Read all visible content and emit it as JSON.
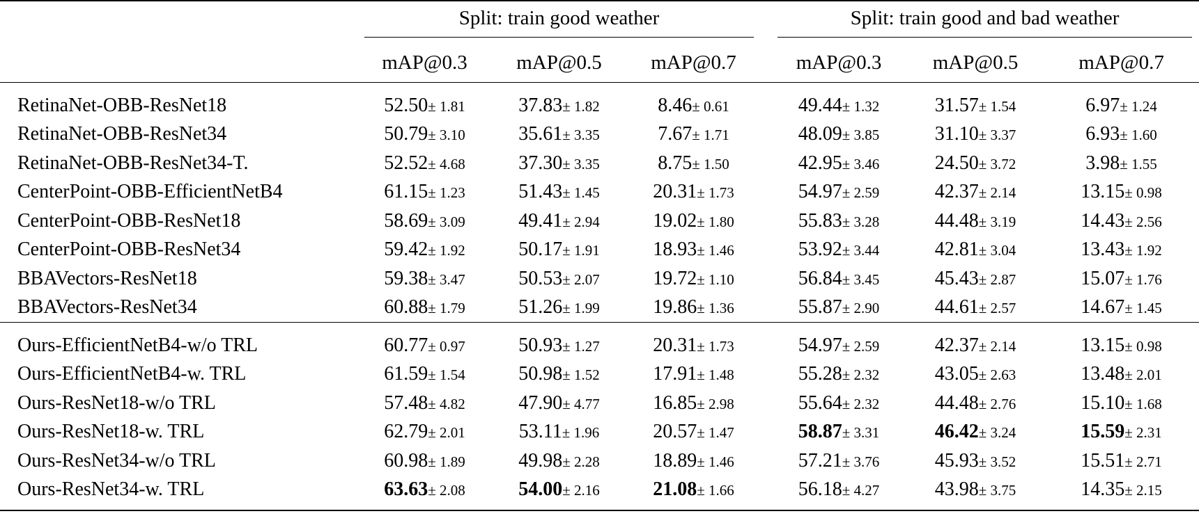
{
  "table": {
    "groups": [
      "Split: train good weather",
      "Split: train good and bad weather"
    ],
    "metrics": [
      "mAP@0.3",
      "mAP@0.5",
      "mAP@0.7"
    ],
    "sections": [
      {
        "rows": [
          {
            "model": "RetinaNet-OBB-ResNet18",
            "cells": [
              {
                "v": "52.50",
                "s": "± 1.81",
                "b": false
              },
              {
                "v": "37.83",
                "s": "± 1.82",
                "b": false
              },
              {
                "v": "8.46",
                "s": "± 0.61",
                "b": false
              },
              {
                "v": "49.44",
                "s": "± 1.32",
                "b": false
              },
              {
                "v": "31.57",
                "s": "± 1.54",
                "b": false
              },
              {
                "v": "6.97",
                "s": "± 1.24",
                "b": false
              }
            ]
          },
          {
            "model": "RetinaNet-OBB-ResNet34",
            "cells": [
              {
                "v": "50.79",
                "s": "± 3.10",
                "b": false
              },
              {
                "v": "35.61",
                "s": "± 3.35",
                "b": false
              },
              {
                "v": "7.67",
                "s": "± 1.71",
                "b": false
              },
              {
                "v": "48.09",
                "s": "± 3.85",
                "b": false
              },
              {
                "v": "31.10",
                "s": "± 3.37",
                "b": false
              },
              {
                "v": "6.93",
                "s": "± 1.60",
                "b": false
              }
            ]
          },
          {
            "model": "RetinaNet-OBB-ResNet34-T.",
            "cells": [
              {
                "v": "52.52",
                "s": "± 4.68",
                "b": false
              },
              {
                "v": "37.30",
                "s": "± 3.35",
                "b": false
              },
              {
                "v": "8.75",
                "s": "± 1.50",
                "b": false
              },
              {
                "v": "42.95",
                "s": "± 3.46",
                "b": false
              },
              {
                "v": "24.50",
                "s": "± 3.72",
                "b": false
              },
              {
                "v": "3.98",
                "s": "± 1.55",
                "b": false
              }
            ]
          },
          {
            "model": "CenterPoint-OBB-EfficientNetB4",
            "cells": [
              {
                "v": "61.15",
                "s": "± 1.23",
                "b": false
              },
              {
                "v": "51.43",
                "s": "± 1.45",
                "b": false
              },
              {
                "v": "20.31",
                "s": "± 1.73",
                "b": false
              },
              {
                "v": "54.97",
                "s": "± 2.59",
                "b": false
              },
              {
                "v": "42.37",
                "s": "± 2.14",
                "b": false
              },
              {
                "v": "13.15",
                "s": "± 0.98",
                "b": false
              }
            ]
          },
          {
            "model": "CenterPoint-OBB-ResNet18",
            "cells": [
              {
                "v": "58.69",
                "s": "± 3.09",
                "b": false
              },
              {
                "v": "49.41",
                "s": "± 2.94",
                "b": false
              },
              {
                "v": "19.02",
                "s": "± 1.80",
                "b": false
              },
              {
                "v": "55.83",
                "s": "± 3.28",
                "b": false
              },
              {
                "v": "44.48",
                "s": "± 3.19",
                "b": false
              },
              {
                "v": "14.43",
                "s": "± 2.56",
                "b": false
              }
            ]
          },
          {
            "model": "CenterPoint-OBB-ResNet34",
            "cells": [
              {
                "v": "59.42",
                "s": "± 1.92",
                "b": false
              },
              {
                "v": "50.17",
                "s": "± 1.91",
                "b": false
              },
              {
                "v": "18.93",
                "s": "± 1.46",
                "b": false
              },
              {
                "v": "53.92",
                "s": "± 3.44",
                "b": false
              },
              {
                "v": "42.81",
                "s": "± 3.04",
                "b": false
              },
              {
                "v": "13.43",
                "s": "± 1.92",
                "b": false
              }
            ]
          },
          {
            "model": "BBAVectors-ResNet18",
            "cells": [
              {
                "v": "59.38",
                "s": "± 3.47",
                "b": false
              },
              {
                "v": "50.53",
                "s": "± 2.07",
                "b": false
              },
              {
                "v": "19.72",
                "s": "± 1.10",
                "b": false
              },
              {
                "v": "56.84",
                "s": "± 3.45",
                "b": false
              },
              {
                "v": "45.43",
                "s": "± 2.87",
                "b": false
              },
              {
                "v": "15.07",
                "s": "± 1.76",
                "b": false
              }
            ]
          },
          {
            "model": "BBAVectors-ResNet34",
            "cells": [
              {
                "v": "60.88",
                "s": "± 1.79",
                "b": false
              },
              {
                "v": "51.26",
                "s": "± 1.99",
                "b": false
              },
              {
                "v": "19.86",
                "s": "± 1.36",
                "b": false
              },
              {
                "v": "55.87",
                "s": "± 2.90",
                "b": false
              },
              {
                "v": "44.61",
                "s": "± 2.57",
                "b": false
              },
              {
                "v": "14.67",
                "s": "± 1.45",
                "b": false
              }
            ]
          }
        ]
      },
      {
        "rows": [
          {
            "model": "Ours-EfficientNetB4-w/o TRL",
            "cells": [
              {
                "v": "60.77",
                "s": "± 0.97",
                "b": false
              },
              {
                "v": "50.93",
                "s": "± 1.27",
                "b": false
              },
              {
                "v": "20.31",
                "s": "± 1.73",
                "b": false
              },
              {
                "v": "54.97",
                "s": "± 2.59",
                "b": false
              },
              {
                "v": "42.37",
                "s": "± 2.14",
                "b": false
              },
              {
                "v": "13.15",
                "s": "± 0.98",
                "b": false
              }
            ]
          },
          {
            "model": "Ours-EfficientNetB4-w. TRL",
            "cells": [
              {
                "v": "61.59",
                "s": "± 1.54",
                "b": false
              },
              {
                "v": "50.98",
                "s": "± 1.52",
                "b": false
              },
              {
                "v": "17.91",
                "s": "± 1.48",
                "b": false
              },
              {
                "v": "55.28",
                "s": "± 2.32",
                "b": false
              },
              {
                "v": "43.05",
                "s": "± 2.63",
                "b": false
              },
              {
                "v": "13.48",
                "s": "± 2.01",
                "b": false
              }
            ]
          },
          {
            "model": "Ours-ResNet18-w/o TRL",
            "cells": [
              {
                "v": "57.48",
                "s": "± 4.82",
                "b": false
              },
              {
                "v": "47.90",
                "s": "± 4.77",
                "b": false
              },
              {
                "v": "16.85",
                "s": "± 2.98",
                "b": false
              },
              {
                "v": "55.64",
                "s": "± 2.32",
                "b": false
              },
              {
                "v": "44.48",
                "s": "± 2.76",
                "b": false
              },
              {
                "v": "15.10",
                "s": "± 1.68",
                "b": false
              }
            ]
          },
          {
            "model": "Ours-ResNet18-w. TRL",
            "cells": [
              {
                "v": "62.79",
                "s": "± 2.01",
                "b": false
              },
              {
                "v": "53.11",
                "s": "± 1.96",
                "b": false
              },
              {
                "v": "20.57",
                "s": "± 1.47",
                "b": false
              },
              {
                "v": "58.87",
                "s": "± 3.31",
                "b": true
              },
              {
                "v": "46.42",
                "s": "± 3.24",
                "b": true
              },
              {
                "v": "15.59",
                "s": "± 2.31",
                "b": true
              }
            ]
          },
          {
            "model": "Ours-ResNet34-w/o TRL",
            "cells": [
              {
                "v": "60.98",
                "s": "± 1.89",
                "b": false
              },
              {
                "v": "49.98",
                "s": "± 2.28",
                "b": false
              },
              {
                "v": "18.89",
                "s": "± 1.46",
                "b": false
              },
              {
                "v": "57.21",
                "s": "± 3.76",
                "b": false
              },
              {
                "v": "45.93",
                "s": "± 3.52",
                "b": false
              },
              {
                "v": "15.51",
                "s": "± 2.71",
                "b": false
              }
            ]
          },
          {
            "model": "Ours-ResNet34-w. TRL",
            "cells": [
              {
                "v": "63.63",
                "s": "± 2.08",
                "b": true
              },
              {
                "v": "54.00",
                "s": "± 2.16",
                "b": true
              },
              {
                "v": "21.08",
                "s": "± 1.66",
                "b": true
              },
              {
                "v": "56.18",
                "s": "± 4.27",
                "b": false
              },
              {
                "v": "43.98",
                "s": "± 3.75",
                "b": false
              },
              {
                "v": "14.35",
                "s": "± 2.15",
                "b": false
              }
            ]
          }
        ]
      }
    ]
  }
}
